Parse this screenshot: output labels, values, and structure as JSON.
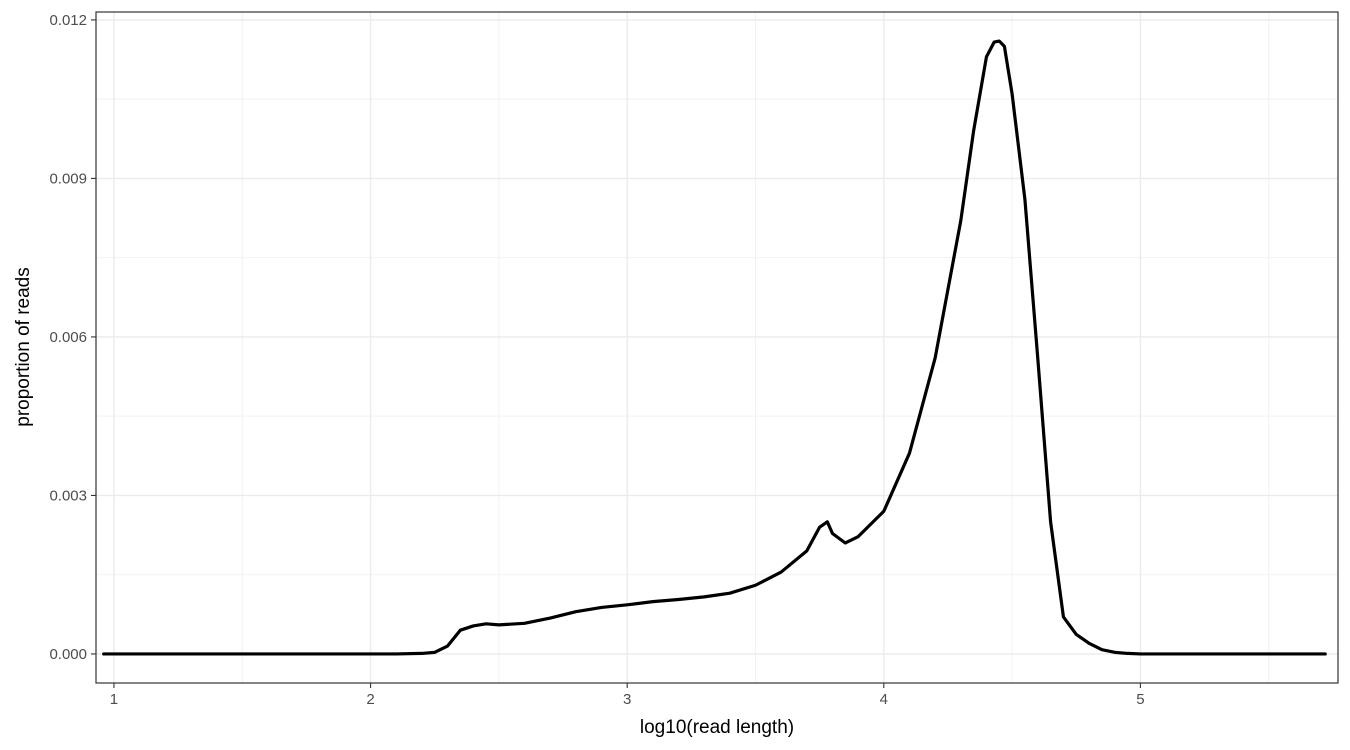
{
  "chart_data": {
    "type": "line",
    "title": "",
    "xlabel": "log10(read length)",
    "ylabel": "proportion of reads",
    "xlim": [
      0.93,
      5.77
    ],
    "ylim": [
      -0.00055,
      0.01215
    ],
    "x_ticks": [
      1,
      2,
      3,
      4,
      5
    ],
    "x_tick_labels": [
      "1",
      "2",
      "3",
      "4",
      "5"
    ],
    "y_ticks": [
      0.0,
      0.003,
      0.006,
      0.009,
      0.012
    ],
    "y_tick_labels": [
      "0.000",
      "0.003",
      "0.006",
      "0.009",
      "0.012"
    ],
    "grid": true,
    "series": [
      {
        "color": "#000000",
        "x": [
          0.96,
          1.5,
          2.0,
          2.1,
          2.2,
          2.25,
          2.3,
          2.35,
          2.4,
          2.45,
          2.5,
          2.6,
          2.7,
          2.8,
          2.9,
          3.0,
          3.1,
          3.2,
          3.3,
          3.4,
          3.5,
          3.6,
          3.7,
          3.75,
          3.78,
          3.8,
          3.85,
          3.9,
          4.0,
          4.1,
          4.2,
          4.3,
          4.35,
          4.4,
          4.43,
          4.45,
          4.47,
          4.5,
          4.55,
          4.6,
          4.65,
          4.7,
          4.75,
          4.8,
          4.85,
          4.9,
          4.95,
          5.0,
          5.1,
          5.3,
          5.5,
          5.72
        ],
        "y": [
          0.0,
          0.0,
          0.0,
          0.0,
          1e-05,
          3e-05,
          0.00015,
          0.00045,
          0.00053,
          0.00057,
          0.00055,
          0.00058,
          0.00068,
          0.0008,
          0.00088,
          0.00093,
          0.00099,
          0.00103,
          0.00108,
          0.00115,
          0.0013,
          0.00155,
          0.00195,
          0.0024,
          0.0025,
          0.00228,
          0.0021,
          0.00222,
          0.0027,
          0.0038,
          0.0056,
          0.0082,
          0.0099,
          0.0113,
          0.01158,
          0.0116,
          0.0115,
          0.0106,
          0.0086,
          0.0056,
          0.0025,
          0.0007,
          0.00037,
          0.0002,
          8e-05,
          3e-05,
          1e-05,
          0.0,
          0.0,
          0.0,
          0.0,
          0.0
        ]
      }
    ]
  }
}
